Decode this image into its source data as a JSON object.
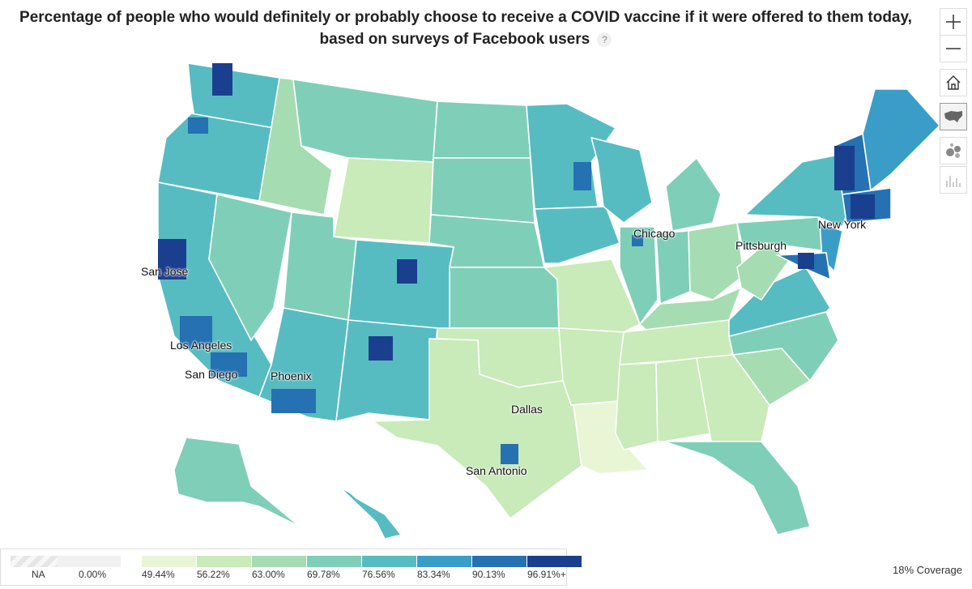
{
  "title": "Percentage of people who would definitely or probably choose to receive a COVID vaccine if it were offered to them today, based on surveys of Facebook users",
  "help_label": "?",
  "cities": [
    {
      "name": "San Jose"
    },
    {
      "name": "Los Angeles"
    },
    {
      "name": "San Diego"
    },
    {
      "name": "Phoenix"
    },
    {
      "name": "Dallas"
    },
    {
      "name": "San Antonio"
    },
    {
      "name": "Chicago"
    },
    {
      "name": "Pittsburgh"
    },
    {
      "name": "New York"
    }
  ],
  "toolbar": {
    "zoom_in": "zoom-in",
    "zoom_out": "zoom-out",
    "home": "home",
    "choropleth": "choropleth-map",
    "bubble": "bubble-map",
    "spike": "spike-map"
  },
  "legend": {
    "na_label": "NA",
    "zero_label": "0.00%",
    "labels": [
      "49.44%",
      "56.22%",
      "63.00%",
      "69.78%",
      "76.56%",
      "83.34%",
      "90.13%",
      "96.91%+"
    ],
    "colors": [
      "#e8f6d6",
      "#c9eab9",
      "#a6dcb2",
      "#7fcfb8",
      "#56bcc2",
      "#3a9dc8",
      "#2571b2",
      "#1b3f8f"
    ],
    "na_color": "#e6e6e6"
  },
  "coverage": "18% Coverage"
}
